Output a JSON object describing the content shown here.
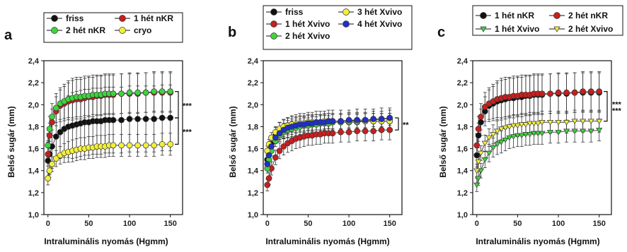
{
  "chart_data": [
    {
      "panel_label": "a",
      "type": "line",
      "xlabel": "Intraluminális nyomás (Hgmm)",
      "ylabel": "Belső sugár (mm)",
      "xlim": [
        -5,
        165
      ],
      "ylim": [
        1.0,
        2.4
      ],
      "xticks": [
        "0",
        "50",
        "100",
        "150"
      ],
      "yticks": [
        "1,0",
        "1,2",
        "1,4",
        "1,6",
        "1,8",
        "2,0",
        "2,2",
        "2,4"
      ],
      "x": [
        0,
        2,
        5,
        10,
        15,
        20,
        25,
        30,
        35,
        40,
        45,
        50,
        55,
        60,
        65,
        70,
        75,
        80,
        90,
        100,
        110,
        120,
        130,
        140,
        150
      ],
      "legend_position": "top",
      "series": [
        {
          "name": "friss",
          "marker": "circle",
          "color": "#111111",
          "values": [
            1.49,
            1.55,
            1.62,
            1.71,
            1.75,
            1.78,
            1.8,
            1.81,
            1.82,
            1.83,
            1.84,
            1.84,
            1.85,
            1.85,
            1.85,
            1.86,
            1.86,
            1.86,
            1.86,
            1.87,
            1.87,
            1.87,
            1.87,
            1.88,
            1.88
          ],
          "error": 0.3
        },
        {
          "name": "1 hét nKR",
          "marker": "circle",
          "color": "#c81e1e",
          "values": [
            1.55,
            1.72,
            1.84,
            1.94,
            1.99,
            2.01,
            2.03,
            2.04,
            2.05,
            2.05,
            2.06,
            2.07,
            2.07,
            2.08,
            2.08,
            2.09,
            2.09,
            2.09,
            2.1,
            2.1,
            2.1,
            2.11,
            2.11,
            2.11,
            2.11
          ],
          "error": 0.18
        },
        {
          "name": "2 hét nKR",
          "marker": "circle",
          "color": "#3ed43e",
          "values": [
            1.63,
            1.78,
            1.89,
            1.97,
            2.01,
            2.03,
            2.05,
            2.06,
            2.07,
            2.07,
            2.08,
            2.08,
            2.09,
            2.09,
            2.09,
            2.1,
            2.1,
            2.1,
            2.1,
            2.11,
            2.11,
            2.11,
            2.12,
            2.12,
            2.12
          ],
          "error": 0.18
        },
        {
          "name": "cryo",
          "marker": "circle",
          "color": "#f2ef3c",
          "values": [
            1.33,
            1.4,
            1.46,
            1.51,
            1.54,
            1.56,
            1.57,
            1.58,
            1.59,
            1.6,
            1.6,
            1.61,
            1.61,
            1.62,
            1.62,
            1.62,
            1.63,
            1.63,
            1.63,
            1.63,
            1.63,
            1.63,
            1.63,
            1.64,
            1.64
          ],
          "error": 0.1
        }
      ],
      "annotations": [
        {
          "text": "***",
          "between": [
            "2 hét nKR",
            "friss"
          ]
        },
        {
          "text": "***",
          "between": [
            "friss",
            "cryo"
          ]
        }
      ]
    },
    {
      "panel_label": "b",
      "type": "line",
      "xlabel": "Intraluminális nyomás (Hgmm)",
      "ylabel": "Belső sugár (mm)",
      "xlim": [
        -5,
        165
      ],
      "ylim": [
        1.0,
        2.4
      ],
      "xticks": [
        "0",
        "50",
        "100",
        "150"
      ],
      "yticks": [
        "1,0",
        "1,2",
        "1,4",
        "1,6",
        "1,8",
        "2,0",
        "2,2",
        "2,4"
      ],
      "x": [
        0,
        2,
        5,
        10,
        15,
        20,
        25,
        30,
        35,
        40,
        45,
        50,
        55,
        60,
        65,
        70,
        75,
        80,
        90,
        100,
        110,
        120,
        130,
        140,
        150
      ],
      "legend_position": "top",
      "series": [
        {
          "name": "friss",
          "marker": "circle",
          "color": "#111111",
          "values": [
            1.5,
            1.57,
            1.64,
            1.72,
            1.76,
            1.78,
            1.79,
            1.8,
            1.81,
            1.82,
            1.82,
            1.83,
            1.83,
            1.84,
            1.84,
            1.84,
            1.85,
            1.85,
            1.85,
            1.85,
            1.86,
            1.86,
            1.86,
            1.87,
            1.87
          ],
          "error": 0.1
        },
        {
          "name": "1 hét Xvivo",
          "marker": "circle",
          "color": "#c81e1e",
          "values": [
            1.27,
            1.33,
            1.42,
            1.52,
            1.58,
            1.62,
            1.65,
            1.67,
            1.69,
            1.7,
            1.71,
            1.72,
            1.72,
            1.73,
            1.73,
            1.74,
            1.74,
            1.74,
            1.75,
            1.75,
            1.76,
            1.76,
            1.76,
            1.77,
            1.77
          ],
          "error": 0.09
        },
        {
          "name": "2 hét Xvivo",
          "marker": "circle",
          "color": "#3ed43e",
          "values": [
            1.42,
            1.5,
            1.58,
            1.67,
            1.72,
            1.75,
            1.77,
            1.78,
            1.79,
            1.8,
            1.81,
            1.81,
            1.82,
            1.82,
            1.83,
            1.83,
            1.83,
            1.84,
            1.84,
            1.84,
            1.84,
            1.85,
            1.85,
            1.85,
            1.85
          ],
          "error": 0.07
        },
        {
          "name": "3 hét Xvivo",
          "marker": "circle",
          "color": "#f2ef3c",
          "values": [
            1.58,
            1.64,
            1.7,
            1.75,
            1.78,
            1.8,
            1.81,
            1.82,
            1.82,
            1.83,
            1.83,
            1.84,
            1.84,
            1.84,
            1.84,
            1.85,
            1.85,
            1.85,
            1.85,
            1.85,
            1.85,
            1.85,
            1.85,
            1.85,
            1.85
          ],
          "error": 0.07
        },
        {
          "name": "4 hét Xvivo",
          "marker": "circle",
          "color": "#2030c8",
          "values": [
            1.46,
            1.54,
            1.62,
            1.7,
            1.74,
            1.77,
            1.79,
            1.8,
            1.81,
            1.82,
            1.82,
            1.83,
            1.83,
            1.84,
            1.84,
            1.84,
            1.85,
            1.85,
            1.85,
            1.86,
            1.86,
            1.86,
            1.87,
            1.87,
            1.88
          ],
          "error": 0.07
        }
      ],
      "annotations": [
        {
          "text": "**",
          "between": [
            "4 hét Xvivo",
            "1 hét Xvivo"
          ]
        }
      ]
    },
    {
      "panel_label": "c",
      "type": "line",
      "xlabel": "Intraluminális nyomás (Hgmm)",
      "ylabel": "Belső sugár (mm)",
      "xlim": [
        -5,
        165
      ],
      "ylim": [
        1.0,
        2.4
      ],
      "xticks": [
        "0",
        "50",
        "100",
        "150"
      ],
      "yticks": [
        "1,0",
        "1,2",
        "1,4",
        "1,6",
        "1,8",
        "2,0",
        "2,2",
        "2,4"
      ],
      "x": [
        0,
        2,
        5,
        10,
        15,
        20,
        25,
        30,
        35,
        40,
        45,
        50,
        55,
        60,
        65,
        70,
        75,
        80,
        90,
        100,
        110,
        120,
        130,
        140,
        150
      ],
      "legend_position": "top",
      "series": [
        {
          "name": "1 hét nKR",
          "marker": "circle",
          "color": "#111111",
          "values": [
            1.54,
            1.72,
            1.84,
            1.94,
            1.99,
            2.01,
            2.03,
            2.04,
            2.05,
            2.06,
            2.06,
            2.07,
            2.07,
            2.08,
            2.08,
            2.09,
            2.09,
            2.09,
            2.1,
            2.1,
            2.1,
            2.11,
            2.11,
            2.11,
            2.11
          ],
          "error": 0.18
        },
        {
          "name": "2 hét nKR",
          "marker": "circle",
          "color": "#c81e1e",
          "values": [
            1.63,
            1.78,
            1.89,
            1.98,
            2.01,
            2.03,
            2.05,
            2.06,
            2.07,
            2.07,
            2.08,
            2.08,
            2.09,
            2.09,
            2.09,
            2.1,
            2.1,
            2.1,
            2.1,
            2.11,
            2.11,
            2.11,
            2.12,
            2.12,
            2.12
          ],
          "error": 0.18
        },
        {
          "name": "1 hét Xvivo",
          "marker": "triangle-down",
          "color": "#3ed43e",
          "values": [
            1.27,
            1.33,
            1.4,
            1.5,
            1.56,
            1.61,
            1.64,
            1.66,
            1.68,
            1.7,
            1.71,
            1.72,
            1.72,
            1.73,
            1.73,
            1.74,
            1.74,
            1.74,
            1.75,
            1.75,
            1.76,
            1.76,
            1.76,
            1.76,
            1.77
          ],
          "error": 0.1
        },
        {
          "name": "2 hét Xvivo",
          "marker": "triangle-down",
          "color": "#f2ef3c",
          "values": [
            1.4,
            1.48,
            1.56,
            1.65,
            1.7,
            1.73,
            1.76,
            1.78,
            1.79,
            1.8,
            1.81,
            1.81,
            1.82,
            1.82,
            1.83,
            1.83,
            1.83,
            1.84,
            1.84,
            1.84,
            1.84,
            1.85,
            1.85,
            1.85,
            1.85
          ],
          "error": 0.1
        }
      ],
      "annotations": [
        {
          "text": "***",
          "between": [
            "2 hét nKR",
            "1 hét Xvivo"
          ]
        },
        {
          "text": "***",
          "between": [
            "2 hét nKR",
            "2 hét Xvivo"
          ]
        }
      ]
    }
  ]
}
